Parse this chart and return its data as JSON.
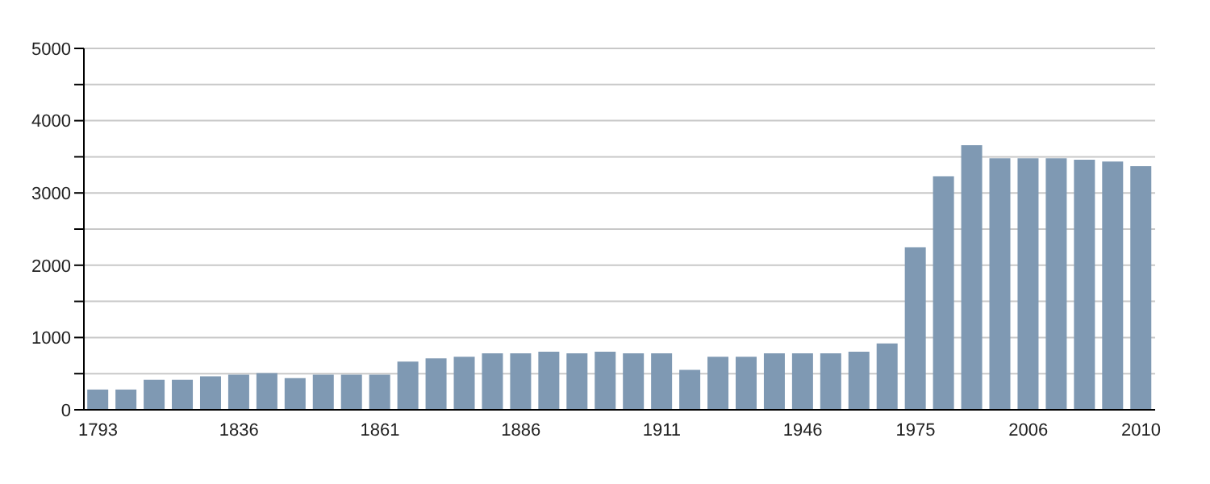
{
  "chart_data": {
    "type": "bar",
    "categories": [
      "1793",
      null,
      null,
      null,
      null,
      "1836",
      null,
      null,
      null,
      null,
      "1861",
      null,
      null,
      null,
      null,
      "1886",
      null,
      null,
      null,
      null,
      "1911",
      null,
      null,
      null,
      null,
      "1946",
      null,
      null,
      null,
      "1975",
      null,
      null,
      null,
      "2006",
      null,
      null,
      null,
      "2010"
    ],
    "values": [
      280,
      280,
      417,
      417,
      462,
      485,
      508,
      439,
      485,
      485,
      485,
      667,
      712,
      735,
      780,
      780,
      803,
      780,
      803,
      780,
      780,
      553,
      735,
      735,
      780,
      780,
      780,
      803,
      917,
      2250,
      3230,
      3660,
      3480,
      3480,
      3480,
      3460,
      3435,
      3370
    ],
    "color": "#7f99b3",
    "ylim": [
      0,
      5000
    ],
    "yticks": [
      0,
      {
        "value": 500,
        "label": null
      },
      1000,
      {
        "value": 1500,
        "label": null
      },
      2000,
      {
        "value": 2500,
        "label": null
      },
      3000,
      {
        "value": 3500,
        "label": null
      },
      4000,
      {
        "value": 4500,
        "label": null
      },
      5000
    ],
    "grid": "y"
  }
}
